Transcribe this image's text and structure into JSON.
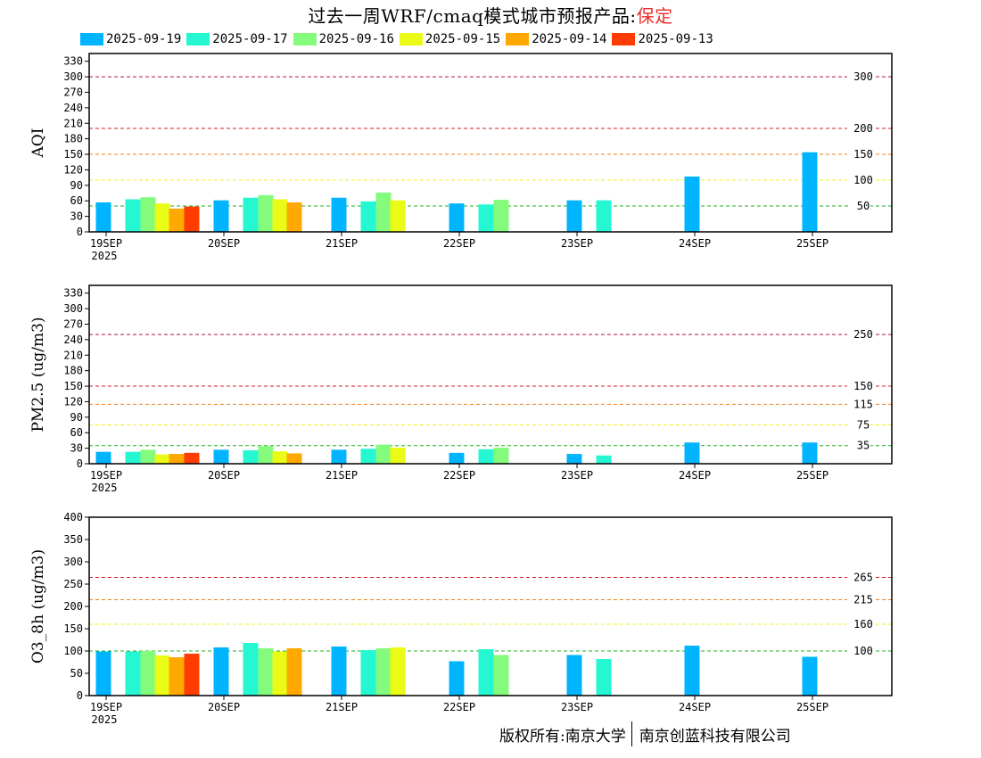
{
  "title": {
    "prefix": "过去一周WRF/cmaq模式城市预报产品:",
    "city": "保定"
  },
  "legend": [
    {
      "label": "2025-09-19",
      "color": "#00b4ff"
    },
    {
      "label": "2025-09-17",
      "color": "#26f7d3"
    },
    {
      "label": "2025-09-16",
      "color": "#84fb7c"
    },
    {
      "label": "2025-09-15",
      "color": "#eafb15"
    },
    {
      "label": "2025-09-14",
      "color": "#ffa800"
    },
    {
      "label": "2025-09-13",
      "color": "#ff3d00"
    }
  ],
  "footer": {
    "owner1": "版权所有:南京大学",
    "owner2": "南京创蓝科技有限公司"
  },
  "chart_data": [
    {
      "type": "bar",
      "ylabel": "AQI",
      "ylim": [
        0,
        345
      ],
      "yticks": [
        0,
        30,
        60,
        90,
        120,
        150,
        180,
        210,
        240,
        270,
        300,
        330
      ],
      "x_labels": [
        "19SEP",
        "20SEP",
        "21SEP",
        "22SEP",
        "23SEP",
        "24SEP",
        "25SEP"
      ],
      "x_year": "2025",
      "thresholds": [
        {
          "value": 300,
          "label": "300",
          "color": "#b0174a"
        },
        {
          "value": 200,
          "label": "200",
          "color": "#d62020"
        },
        {
          "value": 150,
          "label": "150",
          "color": "#f08020"
        },
        {
          "value": 100,
          "label": "100",
          "color": "#f0f020"
        },
        {
          "value": 50,
          "label": "50",
          "color": "#20b020"
        }
      ],
      "series": [
        {
          "name": "2025-09-19",
          "values": [
            57,
            61,
            66,
            55,
            61,
            107,
            154
          ]
        },
        {
          "name": "2025-09-17",
          "values": [
            63,
            66,
            59,
            53,
            61,
            null,
            null
          ]
        },
        {
          "name": "2025-09-16",
          "values": [
            67,
            71,
            76,
            62,
            null,
            null,
            null
          ]
        },
        {
          "name": "2025-09-15",
          "values": [
            55,
            63,
            61,
            null,
            null,
            null,
            null
          ]
        },
        {
          "name": "2025-09-14",
          "values": [
            45,
            57,
            null,
            null,
            null,
            null,
            null
          ]
        },
        {
          "name": "2025-09-13",
          "values": [
            49,
            null,
            null,
            null,
            null,
            null,
            null
          ]
        }
      ]
    },
    {
      "type": "bar",
      "ylabel": "PM2.5 (ug/m3)",
      "ylim": [
        0,
        345
      ],
      "yticks": [
        0,
        30,
        60,
        90,
        120,
        150,
        180,
        210,
        240,
        270,
        300,
        330
      ],
      "x_labels": [
        "19SEP",
        "20SEP",
        "21SEP",
        "22SEP",
        "23SEP",
        "24SEP",
        "25SEP"
      ],
      "x_year": "2025",
      "thresholds": [
        {
          "value": 250,
          "label": "250",
          "color": "#b0174a"
        },
        {
          "value": 150,
          "label": "150",
          "color": "#d62020"
        },
        {
          "value": 115,
          "label": "115",
          "color": "#f08020"
        },
        {
          "value": 75,
          "label": "75",
          "color": "#f0f020"
        },
        {
          "value": 35,
          "label": "35",
          "color": "#20b020"
        }
      ],
      "series": [
        {
          "name": "2025-09-19",
          "values": [
            23,
            27,
            27,
            21,
            19,
            41,
            41
          ]
        },
        {
          "name": "2025-09-17",
          "values": [
            23,
            26,
            29,
            28,
            16,
            null,
            null
          ]
        },
        {
          "name": "2025-09-16",
          "values": [
            27,
            34,
            37,
            31,
            null,
            null,
            null
          ]
        },
        {
          "name": "2025-09-15",
          "values": [
            18,
            24,
            31,
            null,
            null,
            null,
            null
          ]
        },
        {
          "name": "2025-09-14",
          "values": [
            19,
            20,
            null,
            null,
            null,
            null,
            null
          ]
        },
        {
          "name": "2025-09-13",
          "values": [
            21,
            null,
            null,
            null,
            null,
            null,
            null
          ]
        }
      ]
    },
    {
      "type": "bar",
      "ylabel": "O3_8h (ug/m3)",
      "ylim": [
        0,
        400
      ],
      "yticks": [
        0,
        50,
        100,
        150,
        200,
        250,
        300,
        350,
        400
      ],
      "x_labels": [
        "19SEP",
        "20SEP",
        "21SEP",
        "22SEP",
        "23SEP",
        "24SEP",
        "25SEP"
      ],
      "x_year": "2025",
      "thresholds": [
        {
          "value": 265,
          "label": "265",
          "color": "#d62020"
        },
        {
          "value": 215,
          "label": "215",
          "color": "#f08020"
        },
        {
          "value": 160,
          "label": "160",
          "color": "#f0f020"
        },
        {
          "value": 100,
          "label": "100",
          "color": "#20b020"
        }
      ],
      "series": [
        {
          "name": "2025-09-19",
          "values": [
            99,
            108,
            110,
            77,
            91,
            112,
            87
          ]
        },
        {
          "name": "2025-09-17",
          "values": [
            99,
            118,
            102,
            104,
            82,
            null,
            null
          ]
        },
        {
          "name": "2025-09-16",
          "values": [
            100,
            106,
            106,
            91,
            null,
            null,
            null
          ]
        },
        {
          "name": "2025-09-15",
          "values": [
            90,
            99,
            108,
            null,
            null,
            null,
            null
          ]
        },
        {
          "name": "2025-09-14",
          "values": [
            86,
            106,
            null,
            null,
            null,
            null,
            null
          ]
        },
        {
          "name": "2025-09-13",
          "values": [
            94,
            null,
            null,
            null,
            null,
            null,
            null
          ]
        }
      ]
    }
  ]
}
